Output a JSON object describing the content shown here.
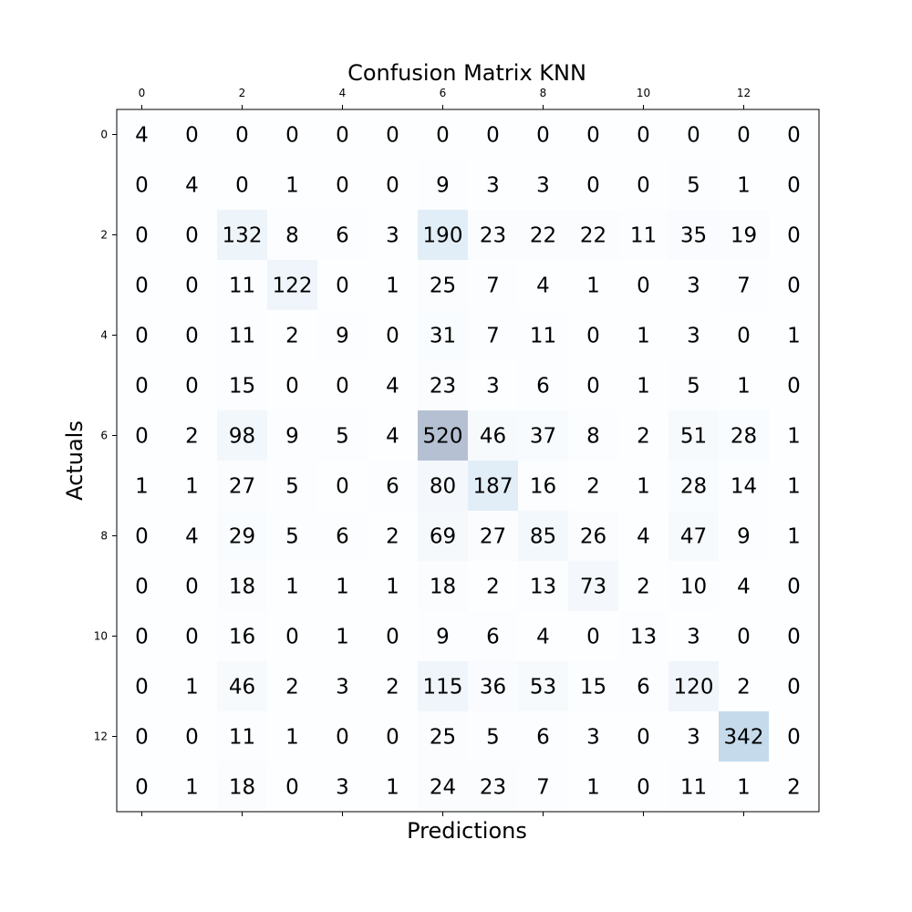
{
  "chart_data": {
    "type": "heatmap",
    "title": "Confusion Matrix KNN",
    "xlabel": "Predictions",
    "ylabel": "Actuals",
    "x_ticks": [
      "0",
      "2",
      "4",
      "6",
      "8",
      "10",
      "12"
    ],
    "y_ticks": [
      "0",
      "2",
      "4",
      "6",
      "8",
      "10",
      "12"
    ],
    "x_tick_indices": [
      0,
      2,
      4,
      6,
      8,
      10,
      12
    ],
    "y_tick_indices": [
      0,
      2,
      4,
      6,
      8,
      10,
      12
    ],
    "colormap": "Blues",
    "color_low": "#f7fbff",
    "color_high": "#08306b",
    "cell_alpha": 0.3,
    "vmin": 0,
    "vmax": 520,
    "matrix": [
      [
        4,
        0,
        0,
        0,
        0,
        0,
        0,
        0,
        0,
        0,
        0,
        0,
        0,
        0
      ],
      [
        0,
        4,
        0,
        1,
        0,
        0,
        9,
        3,
        3,
        0,
        0,
        5,
        1,
        0
      ],
      [
        0,
        0,
        132,
        8,
        6,
        3,
        190,
        23,
        22,
        22,
        11,
        35,
        19,
        0
      ],
      [
        0,
        0,
        11,
        122,
        0,
        1,
        25,
        7,
        4,
        1,
        0,
        3,
        7,
        0
      ],
      [
        0,
        0,
        11,
        2,
        9,
        0,
        31,
        7,
        11,
        0,
        1,
        3,
        0,
        1
      ],
      [
        0,
        0,
        15,
        0,
        0,
        4,
        23,
        3,
        6,
        0,
        1,
        5,
        1,
        0
      ],
      [
        0,
        2,
        98,
        9,
        5,
        4,
        520,
        46,
        37,
        8,
        2,
        51,
        28,
        1
      ],
      [
        1,
        1,
        27,
        5,
        0,
        6,
        80,
        187,
        16,
        2,
        1,
        28,
        14,
        1
      ],
      [
        0,
        4,
        29,
        5,
        6,
        2,
        69,
        27,
        85,
        26,
        4,
        47,
        9,
        1
      ],
      [
        0,
        0,
        18,
        1,
        1,
        1,
        18,
        2,
        13,
        73,
        2,
        10,
        4,
        0
      ],
      [
        0,
        0,
        16,
        0,
        1,
        0,
        9,
        6,
        4,
        0,
        13,
        3,
        0,
        0
      ],
      [
        0,
        1,
        46,
        2,
        3,
        2,
        115,
        36,
        53,
        15,
        6,
        120,
        2,
        0
      ],
      [
        0,
        0,
        11,
        1,
        0,
        0,
        25,
        5,
        6,
        3,
        0,
        3,
        342,
        0
      ],
      [
        0,
        1,
        18,
        0,
        3,
        1,
        24,
        23,
        7,
        1,
        0,
        11,
        1,
        2
      ]
    ]
  }
}
